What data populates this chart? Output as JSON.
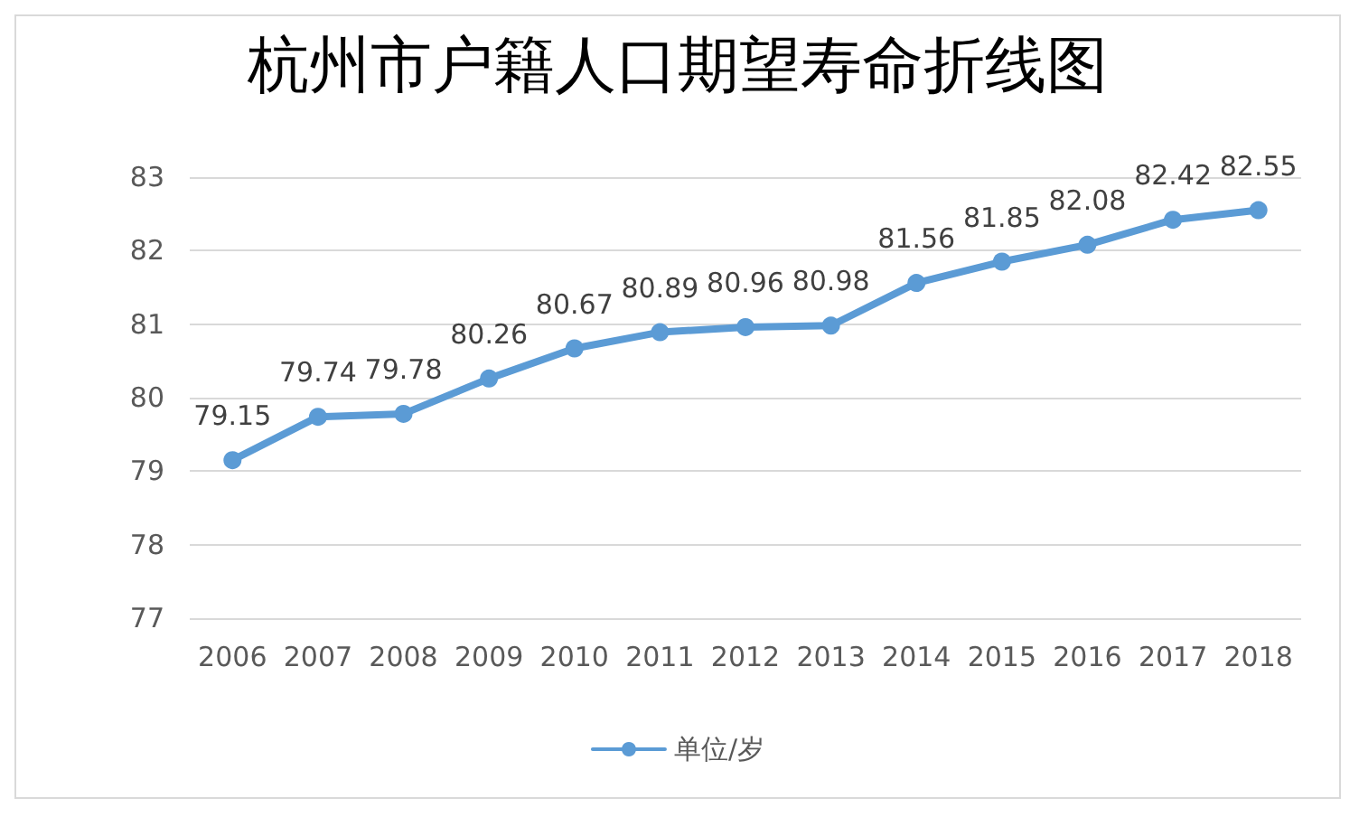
{
  "chart_data": {
    "type": "line",
    "title": "杭州市户籍人口期望寿命折线图",
    "categories": [
      "2006",
      "2007",
      "2008",
      "2009",
      "2010",
      "2011",
      "2012",
      "2013",
      "2014",
      "2015",
      "2016",
      "2017",
      "2018"
    ],
    "series": [
      {
        "name": "单位/岁",
        "color": "#5b9bd5",
        "values": [
          79.15,
          79.74,
          79.78,
          80.26,
          80.67,
          80.89,
          80.96,
          80.98,
          81.56,
          81.85,
          82.08,
          82.42,
          82.55
        ]
      }
    ],
    "ylim": [
      77,
      83
    ],
    "yticks": [
      77,
      78,
      79,
      80,
      81,
      82,
      83
    ],
    "grid": "y",
    "legend": "bottom",
    "marker": "circle",
    "line_style": "solid",
    "data_labels": true
  }
}
